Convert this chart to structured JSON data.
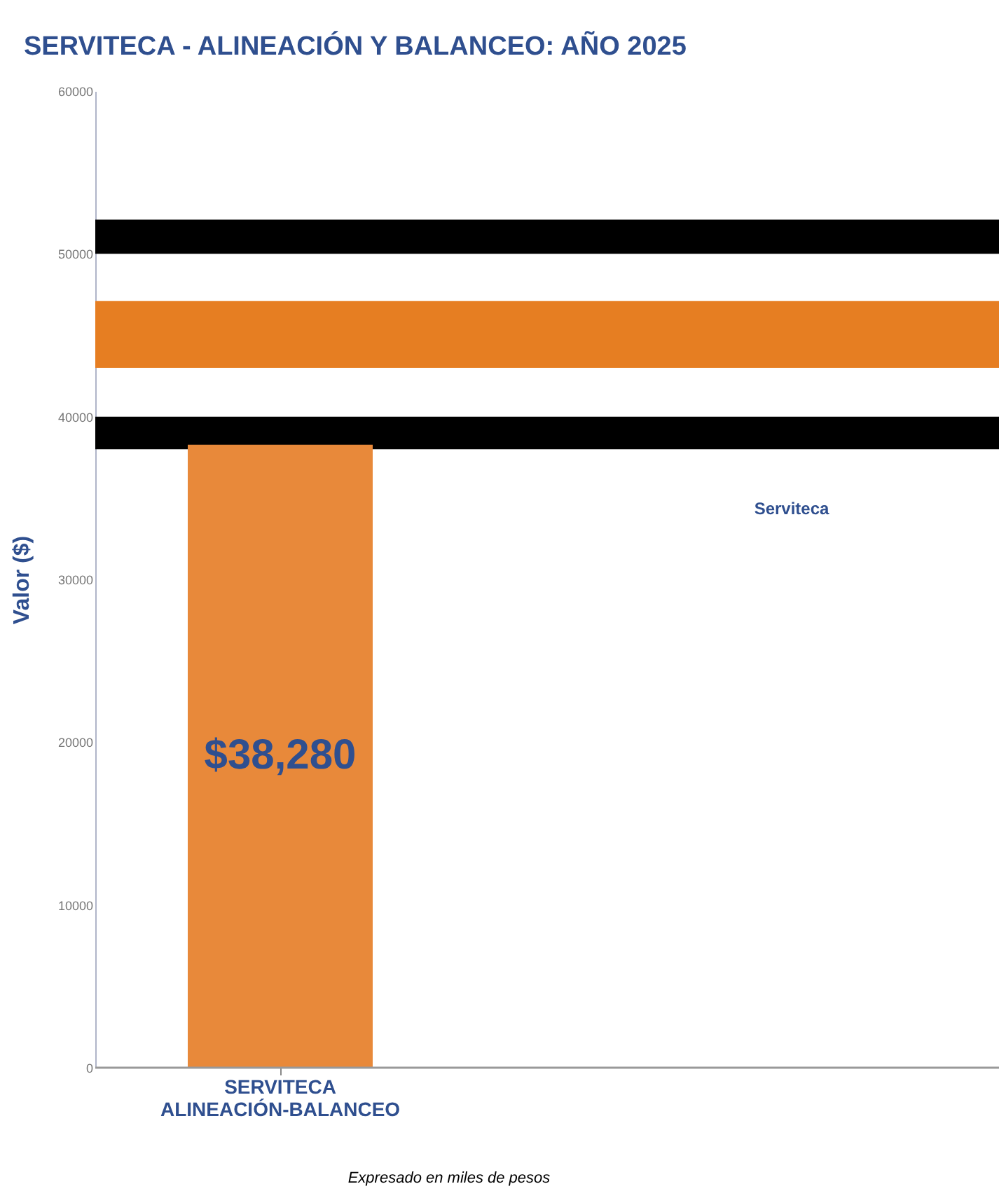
{
  "chart_data": {
    "type": "bar",
    "title": "SERVITECA - ALINEACIÓN Y BALANCEO: AÑO 2025",
    "ylabel": "Valor ($)",
    "categories": [
      "SERVITECA\nALINEACIÓN-BALANCEO"
    ],
    "values": [
      38280
    ],
    "color": "#e8893a",
    "value_labels": [
      "$38,280"
    ],
    "ylim": [
      0,
      60000
    ],
    "yticks": [
      0,
      10000,
      20000,
      30000,
      40000,
      50000,
      60000
    ],
    "bands": [
      {
        "axis": "y",
        "from": 50000,
        "to": 52100,
        "color": "#000000"
      },
      {
        "axis": "y",
        "from": 43000,
        "to": 47100,
        "color": "#e67e22"
      },
      {
        "axis": "y",
        "from": 38000,
        "to": 40000,
        "color": "#000000"
      }
    ],
    "annotations": [
      "Serviteca",
      "Expresado en miles de pesos"
    ],
    "grid": false
  }
}
